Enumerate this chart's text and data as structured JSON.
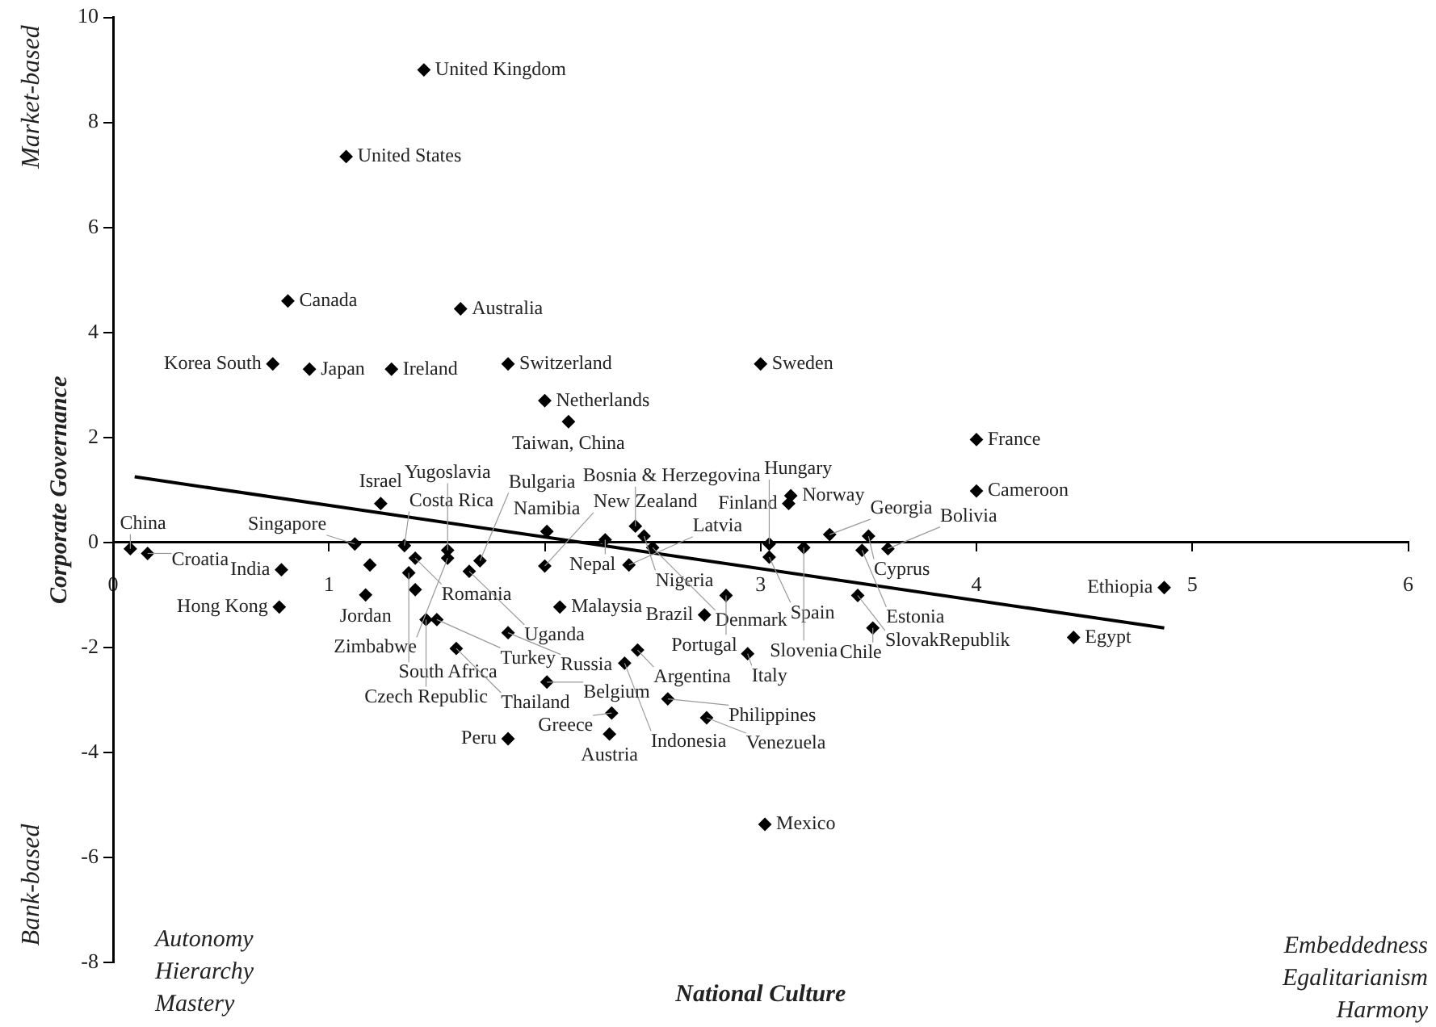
{
  "chart_data": {
    "type": "scatter",
    "xlabel": "National Culture",
    "ylabel": "Corporate Governance",
    "xlim": [
      0,
      6
    ],
    "xticks": [
      0,
      1,
      {
        "value": 2,
        "label": null
      },
      3,
      4,
      5,
      6
    ],
    "ylim": [
      -8,
      10
    ],
    "yticks": [
      -8,
      -6,
      -4,
      -2,
      0,
      2,
      4,
      6,
      8,
      10
    ],
    "grid": false,
    "legend": false,
    "annotations": [
      "Market-based",
      "Bank-based",
      "Autonomy\nHierarchy\nMastery",
      "Embeddedness\nEgalitarianism\nHarmony",
      {
        "text": "United Kingdom",
        "x": 1.44,
        "y": 9.0
      },
      {
        "text": "United States",
        "x": 1.08,
        "y": 7.35
      },
      {
        "text": "Canada",
        "x": 0.81,
        "y": 4.6
      },
      {
        "text": "Australia",
        "x": 1.61,
        "y": 4.45
      },
      {
        "text": "Korea South",
        "x": 0.74,
        "y": 3.4
      },
      {
        "text": "Japan",
        "x": 0.91,
        "y": 3.3
      },
      {
        "text": "Ireland",
        "x": 1.29,
        "y": 3.3
      },
      {
        "text": "Switzerland",
        "x": 1.83,
        "y": 3.4
      },
      {
        "text": "Sweden",
        "x": 3.0,
        "y": 3.4
      },
      {
        "text": "Netherlands",
        "x": 2.0,
        "y": 2.7
      },
      {
        "text": "Taiwan, China",
        "x": 2.11,
        "y": 2.3
      },
      {
        "text": "France",
        "x": 4.0,
        "y": 1.96
      },
      {
        "text": "Cameroon",
        "x": 4.0,
        "y": 0.98
      },
      {
        "text": "Norway",
        "x": 3.14,
        "y": 0.89
      },
      {
        "text": "Finland",
        "x": 3.13,
        "y": 0.74
      },
      {
        "text": "Israel",
        "x": 1.24,
        "y": 0.74
      },
      {
        "text": "Namibia",
        "x": 2.01,
        "y": 0.21
      },
      {
        "text": "China",
        "x": 0.08,
        "y": -0.12
      },
      {
        "text": "Croatia",
        "x": 0.16,
        "y": -0.21
      },
      {
        "text": "India",
        "x": 0.78,
        "y": -0.52
      },
      {
        "text": "Hong Kong",
        "x": 0.77,
        "y": -1.23
      },
      {
        "text": "Jordan",
        "x": 1.17,
        "y": -1.0
      },
      {
        "text": "Singapore",
        "x": 1.12,
        "y": -0.03
      },
      {
        "text": "Costa Rica",
        "x": 1.35,
        "y": -0.06
      },
      {
        "text": "Yugoslavia",
        "x": 1.55,
        "y": -0.15
      },
      {
        "text": "Romania",
        "x": 1.4,
        "y": -0.3
      },
      {
        "text": "Zimbabwe",
        "x": 1.55,
        "y": -0.3
      },
      {
        "text": "Bulgaria",
        "x": 1.7,
        "y": -0.35
      },
      {
        "text": "South Africa",
        "x": 1.37,
        "y": -0.58
      },
      {
        "text": "Uganda",
        "x": 1.65,
        "y": -0.55
      },
      {
        "text": "Czech Republic",
        "x": 1.45,
        "y": -1.47
      },
      {
        "text": "Turkey",
        "x": 1.5,
        "y": -1.47
      },
      {
        "text": "Thailand",
        "x": 1.59,
        "y": -2.02
      },
      {
        "text": "Russia",
        "x": 1.83,
        "y": -1.72
      },
      {
        "text": "Malaysia",
        "x": 2.07,
        "y": -1.23
      },
      {
        "text": "New Zealand",
        "x": 2.0,
        "y": -0.45
      },
      {
        "text": "Nepal",
        "x": 2.28,
        "y": 0.05
      },
      {
        "text": "Bosnia & Herzegovina",
        "x": 2.42,
        "y": 0.31
      },
      {
        "text": "Nigeria",
        "x": 2.46,
        "y": 0.12
      },
      {
        "text": "Latvia",
        "x": 2.39,
        "y": -0.43
      },
      {
        "text": "Denmark",
        "x": 2.5,
        "y": -0.1
      },
      {
        "text": "Hungary",
        "x": 3.04,
        "y": -0.03
      },
      {
        "text": "Spain",
        "x": 3.04,
        "y": -0.28
      },
      {
        "text": "Georgia",
        "x": 3.32,
        "y": 0.15
      },
      {
        "text": "Cyprus",
        "x": 3.5,
        "y": 0.12
      },
      {
        "text": "Estonia",
        "x": 3.47,
        "y": -0.15
      },
      {
        "text": "Slovenia",
        "x": 3.2,
        "y": -0.1
      },
      {
        "text": "Bolivia",
        "x": 3.59,
        "y": -0.12
      },
      {
        "text": "Portugal",
        "x": 2.84,
        "y": -1.01
      },
      {
        "text": "Brazil",
        "x": 2.74,
        "y": -1.38
      },
      {
        "text": "SlovakRepublik",
        "x": 3.45,
        "y": -1.01
      },
      {
        "text": "Chile",
        "x": 3.52,
        "y": -1.63
      },
      {
        "text": "Egypt",
        "x": 4.45,
        "y": -1.81
      },
      {
        "text": "Ethiopia",
        "x": 4.87,
        "y": -0.86
      },
      {
        "text": "Argentina",
        "x": 2.43,
        "y": -2.05
      },
      {
        "text": "Indonesia",
        "x": 2.37,
        "y": -2.3
      },
      {
        "text": "Italy",
        "x": 2.94,
        "y": -2.12
      },
      {
        "text": "Belgium",
        "x": 2.01,
        "y": -2.66
      },
      {
        "text": "Philippines",
        "x": 2.57,
        "y": -2.98
      },
      {
        "text": "Greece",
        "x": 2.31,
        "y": -3.25
      },
      {
        "text": "Venezuela",
        "x": 2.75,
        "y": -3.34
      },
      {
        "text": "Austria",
        "x": 2.3,
        "y": -3.65
      },
      {
        "text": "Peru",
        "x": 1.83,
        "y": -3.74
      },
      {
        "text": "Mexico",
        "x": 3.02,
        "y": -5.37
      }
    ],
    "series": [
      {
        "type": "scatter",
        "color": "#000000",
        "marker": "diamond",
        "x": [
          1.44,
          1.08,
          0.81,
          1.61,
          0.74,
          0.91,
          1.29,
          1.83,
          3.0,
          2.0,
          2.11,
          4.0,
          4.0,
          3.14,
          3.13,
          1.24,
          2.01,
          0.08,
          0.16,
          0.78,
          0.77,
          1.17,
          1.12,
          1.35,
          1.55,
          1.4,
          1.55,
          1.7,
          1.37,
          1.65,
          1.45,
          1.5,
          1.59,
          1.83,
          2.07,
          2.0,
          2.28,
          2.42,
          2.46,
          2.39,
          2.5,
          3.04,
          3.04,
          3.32,
          3.5,
          3.47,
          3.2,
          3.59,
          2.84,
          2.74,
          3.45,
          3.52,
          4.45,
          4.87,
          2.43,
          2.37,
          2.94,
          2.01,
          2.57,
          2.31,
          2.75,
          2.3,
          1.83,
          3.02,
          1.19,
          1.4
        ],
        "values": [
          9.0,
          7.35,
          4.6,
          4.45,
          3.4,
          3.3,
          3.3,
          3.4,
          3.4,
          2.7,
          2.3,
          1.96,
          0.98,
          0.89,
          0.74,
          0.74,
          0.21,
          -0.12,
          -0.21,
          -0.52,
          -1.23,
          -1.0,
          -0.03,
          -0.06,
          -0.15,
          -0.3,
          -0.3,
          -0.35,
          -0.58,
          -0.55,
          -1.47,
          -1.47,
          -2.02,
          -1.72,
          -1.23,
          -0.45,
          0.05,
          0.31,
          0.12,
          -0.43,
          -0.1,
          -0.03,
          -0.28,
          0.15,
          0.12,
          -0.15,
          -0.1,
          -0.12,
          -1.01,
          -1.38,
          -1.01,
          -1.63,
          -1.81,
          -0.86,
          -2.05,
          -2.3,
          -2.12,
          -2.66,
          -2.98,
          -3.25,
          -3.34,
          -3.65,
          -3.74,
          -5.37,
          -0.43,
          -0.9
        ]
      },
      {
        "type": "line",
        "color": "#000000",
        "x": [
          0.1,
          4.87
        ],
        "values": [
          1.25,
          -1.63
        ]
      }
    ]
  }
}
